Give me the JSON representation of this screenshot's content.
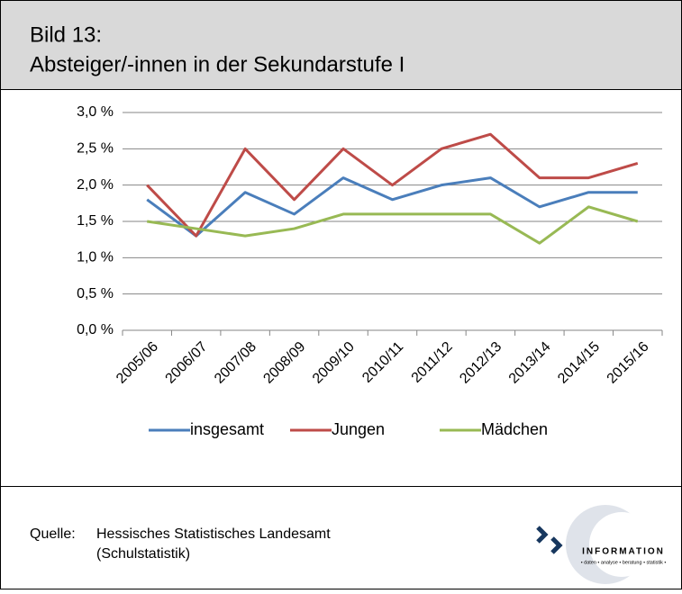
{
  "chart_data": {
    "type": "line",
    "title": "Bild 13:",
    "subtitle": "Absteiger/-innen in der Sekundarstufe I",
    "categories": [
      "2005/06",
      "2006/07",
      "2007/08",
      "2008/09",
      "2009/10",
      "2010/11",
      "2011/12",
      "2012/13",
      "2013/14",
      "2014/15",
      "2015/16"
    ],
    "series": [
      {
        "name": "insgesamt",
        "color": "#4a7ebb",
        "values": [
          1.8,
          1.3,
          1.9,
          1.6,
          2.1,
          1.8,
          2.0,
          2.1,
          1.7,
          1.9,
          1.9
        ]
      },
      {
        "name": "Jungen",
        "color": "#be4b48",
        "values": [
          2.0,
          1.3,
          2.5,
          1.8,
          2.5,
          2.0,
          2.5,
          2.7,
          2.1,
          2.1,
          2.3
        ]
      },
      {
        "name": "Mädchen",
        "color": "#98b954",
        "values": [
          1.5,
          1.4,
          1.3,
          1.4,
          1.6,
          1.6,
          1.6,
          1.6,
          1.2,
          1.7,
          1.5
        ]
      }
    ],
    "ylim": [
      0,
      3
    ],
    "yticks": [
      {
        "value": 0,
        "label": "0,0 %"
      },
      {
        "value": 0.5,
        "label": "0,5 %"
      },
      {
        "value": 1,
        "label": "1,0 %"
      },
      {
        "value": 1.5,
        "label": "1,5 %"
      },
      {
        "value": 2,
        "label": "2,0 %"
      },
      {
        "value": 2.5,
        "label": "2,5 %"
      },
      {
        "value": 3,
        "label": "3,0 %"
      }
    ],
    "grid": true,
    "legend": "bottom"
  },
  "source": {
    "label": "Quelle:",
    "lines": [
      "Hessisches Statistisches Landesamt",
      "(Schulstatistik)"
    ]
  },
  "logo": {
    "name": "INFORMATION",
    "tagline": "• daten • analyse • beratung • statistik •"
  }
}
